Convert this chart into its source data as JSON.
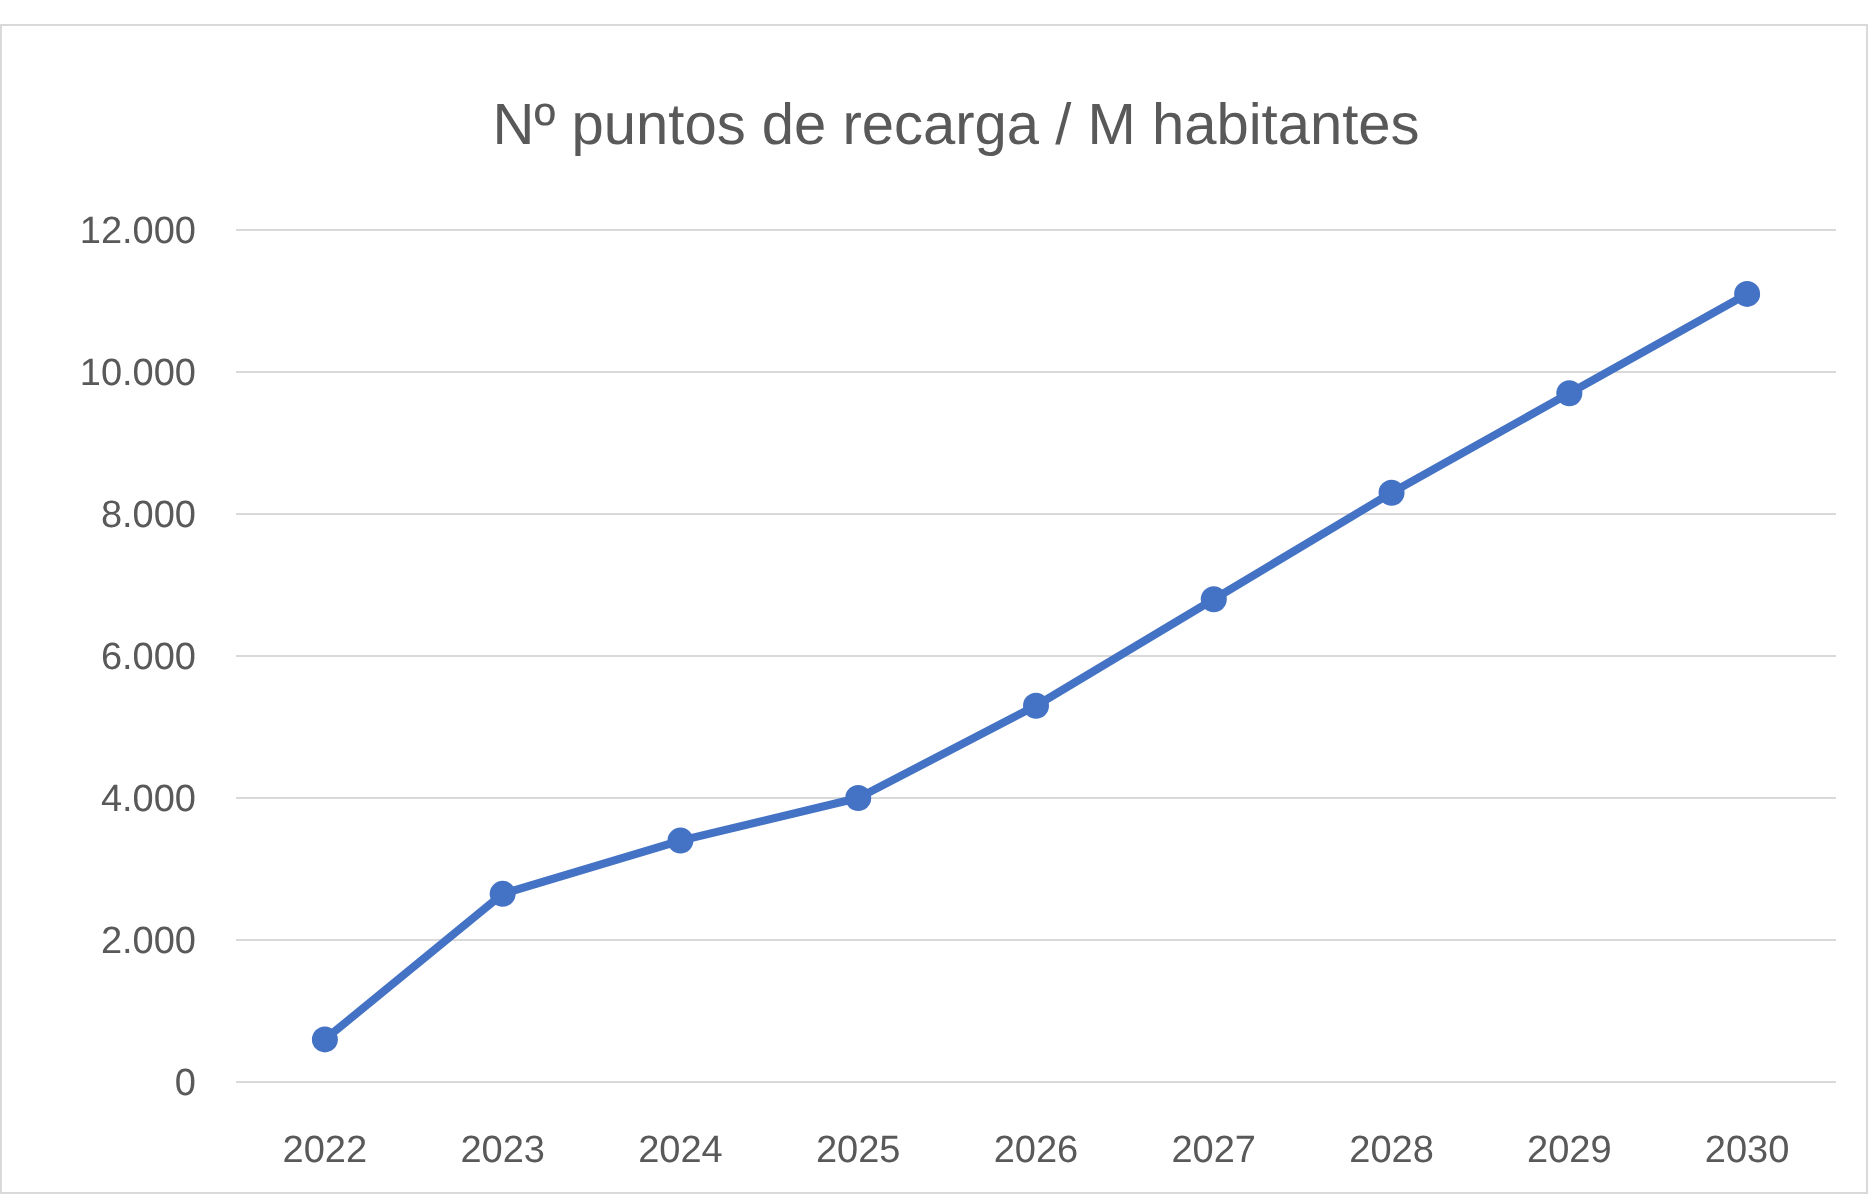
{
  "chart_data": {
    "type": "line",
    "title": "Nº puntos de recarga / M habitantes",
    "categories": [
      "2022",
      "2023",
      "2024",
      "2025",
      "2026",
      "2027",
      "2028",
      "2029",
      "2030"
    ],
    "series": [
      {
        "color": "#4472c4",
        "values": [
          600,
          2650,
          3400,
          4000,
          5300,
          6800,
          8300,
          9700,
          11100
        ]
      }
    ],
    "ylim": [
      0,
      12000
    ],
    "yticks": [
      {
        "value": 0,
        "label": "0"
      },
      {
        "value": 2000,
        "label": "2.000"
      },
      {
        "value": 4000,
        "label": "4.000"
      },
      {
        "value": 6000,
        "label": "6.000"
      },
      {
        "value": 8000,
        "label": "8.000"
      },
      {
        "value": 10000,
        "label": "10.000"
      },
      {
        "value": 12000,
        "label": "12.000"
      }
    ],
    "grid": "y",
    "marker": "circle",
    "line_style": "solid"
  }
}
